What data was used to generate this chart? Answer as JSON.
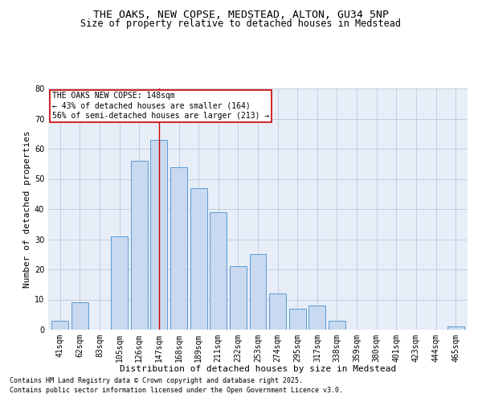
{
  "title_line1": "THE OAKS, NEW COPSE, MEDSTEAD, ALTON, GU34 5NP",
  "title_line2": "Size of property relative to detached houses in Medstead",
  "xlabel": "Distribution of detached houses by size in Medstead",
  "ylabel": "Number of detached properties",
  "categories": [
    "41sqm",
    "62sqm",
    "83sqm",
    "105sqm",
    "126sqm",
    "147sqm",
    "168sqm",
    "189sqm",
    "211sqm",
    "232sqm",
    "253sqm",
    "274sqm",
    "295sqm",
    "317sqm",
    "338sqm",
    "359sqm",
    "380sqm",
    "401sqm",
    "423sqm",
    "444sqm",
    "465sqm"
  ],
  "values": [
    3,
    9,
    0,
    31,
    56,
    63,
    54,
    47,
    39,
    21,
    25,
    12,
    7,
    8,
    3,
    0,
    0,
    0,
    0,
    0,
    1
  ],
  "bar_color": "#c8d9f0",
  "bar_edge_color": "#5b9bd5",
  "highlight_index": 5,
  "highlight_line_color": "#cc0000",
  "annotation_line1": "THE OAKS NEW COPSE: 148sqm",
  "annotation_line2": "← 43% of detached houses are smaller (164)",
  "annotation_line3": "56% of semi-detached houses are larger (213) →",
  "annotation_box_color": "#cc0000",
  "ylim": [
    0,
    80
  ],
  "yticks": [
    0,
    10,
    20,
    30,
    40,
    50,
    60,
    70,
    80
  ],
  "grid_color": "#c0c8d8",
  "background_color": "#e8eef8",
  "footnote_line1": "Contains HM Land Registry data © Crown copyright and database right 2025.",
  "footnote_line2": "Contains public sector information licensed under the Open Government Licence v3.0.",
  "title_fontsize": 9.5,
  "subtitle_fontsize": 8.5,
  "axis_label_fontsize": 8,
  "tick_fontsize": 7,
  "annotation_fontsize": 7,
  "footnote_fontsize": 6
}
